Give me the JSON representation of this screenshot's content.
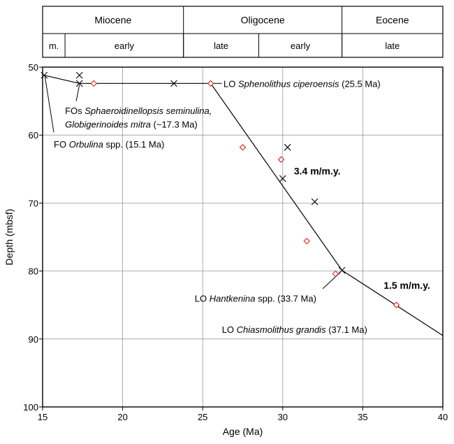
{
  "chart_data": {
    "type": "scatter",
    "title": "",
    "xlabel": "Age (Ma)",
    "ylabel": "Depth (mbsf)",
    "xlim": [
      15,
      40
    ],
    "ylim": [
      100,
      50
    ],
    "y_inverted": true,
    "grid": true,
    "xticks": [
      "15",
      "20",
      "25",
      "30",
      "35",
      "40"
    ],
    "yticks": [
      "50",
      "60",
      "70",
      "80",
      "90",
      "100"
    ],
    "epochs": [
      {
        "label": "Miocene",
        "start": 15,
        "end": 23.8
      },
      {
        "label": "Oligocene",
        "start": 23.8,
        "end": 33.7
      },
      {
        "label": "Eocene",
        "start": 33.7,
        "end": 40
      }
    ],
    "subepochs": [
      {
        "label": "m.",
        "start": 15,
        "end": 16.4
      },
      {
        "label": "early",
        "start": 16.4,
        "end": 23.8
      },
      {
        "label": "late",
        "start": 23.8,
        "end": 28.5
      },
      {
        "label": "early",
        "start": 28.5,
        "end": 33.7
      },
      {
        "label": "late",
        "start": 33.7,
        "end": 40
      }
    ],
    "series": [
      {
        "marker": "x",
        "color": "#000000",
        "points": [
          {
            "x": 15.1,
            "y": 51.2
          },
          {
            "x": 17.3,
            "y": 51.2
          },
          {
            "x": 17.3,
            "y": 52.4
          },
          {
            "x": 23.2,
            "y": 52.4
          },
          {
            "x": 30.3,
            "y": 61.8
          },
          {
            "x": 30.0,
            "y": 66.4
          },
          {
            "x": 32.0,
            "y": 69.8
          },
          {
            "x": 33.7,
            "y": 79.9
          }
        ]
      },
      {
        "marker": "diamond",
        "color": "#e0261e",
        "points": [
          {
            "x": 18.2,
            "y": 52.4
          },
          {
            "x": 25.5,
            "y": 52.4
          },
          {
            "x": 27.5,
            "y": 61.8
          },
          {
            "x": 29.9,
            "y": 63.6
          },
          {
            "x": 31.5,
            "y": 75.6
          },
          {
            "x": 33.3,
            "y": 80.4
          },
          {
            "x": 37.1,
            "y": 85.0
          }
        ]
      }
    ],
    "trend_line": [
      {
        "x": 15.1,
        "y": 51.2
      },
      {
        "x": 17.3,
        "y": 52.4
      },
      {
        "x": 25.5,
        "y": 52.4
      },
      {
        "x": 33.7,
        "y": 79.9
      },
      {
        "x": 40.0,
        "y": 89.5
      }
    ],
    "sedimentation_rates": [
      {
        "label": "3.4 m/m.y.",
        "x": 30.7,
        "y": 65.3
      },
      {
        "label": "1.5 m/m.y.",
        "x": 36.3,
        "y": 82.1
      }
    ],
    "annotations": [
      {
        "parts": [
          [
            "LO ",
            false
          ],
          [
            "Sphenolithus ciperoensis",
            true
          ],
          [
            " (25.5 Ma)",
            false
          ]
        ],
        "x": 26.3,
        "y": 52.4,
        "leader": [
          {
            "x": 26.2,
            "y": 52.4
          },
          {
            "x": 25.6,
            "y": 52.4
          }
        ]
      },
      {
        "parts": [
          [
            "FOs ",
            false
          ],
          [
            "Sphaeroidinellopsis seminulina,",
            true
          ]
        ],
        "x": 16.4,
        "y": 56.4,
        "leader": [
          {
            "x": 17.1,
            "y": 55.0
          },
          {
            "x": 17.3,
            "y": 52.6
          }
        ]
      },
      {
        "parts": [
          [
            "Globigerinoides mitra",
            true
          ],
          [
            " (~17.3 Ma)",
            false
          ]
        ],
        "x": 16.4,
        "y": 58.4
      },
      {
        "parts": [
          [
            "FO ",
            false
          ],
          [
            "Orbulina",
            true
          ],
          [
            " spp. (15.1 Ma)",
            false
          ]
        ],
        "x": 15.7,
        "y": 61.3,
        "leader": [
          {
            "x": 15.7,
            "y": 59.6
          },
          {
            "x": 15.15,
            "y": 51.4
          }
        ]
      },
      {
        "parts": [
          [
            "LO ",
            false
          ],
          [
            "Hantkenina",
            true
          ],
          [
            " spp. (33.7 Ma)",
            false
          ]
        ],
        "x": 24.5,
        "y": 84.0,
        "leader": [
          {
            "x": 32.5,
            "y": 82.6
          },
          {
            "x": 33.6,
            "y": 80.2
          }
        ]
      },
      {
        "parts": [
          [
            "LO ",
            false
          ],
          [
            "Chiasmolithus grandis",
            true
          ],
          [
            " (37.1 Ma)",
            false
          ]
        ],
        "x": 26.2,
        "y": 88.6
      }
    ]
  }
}
